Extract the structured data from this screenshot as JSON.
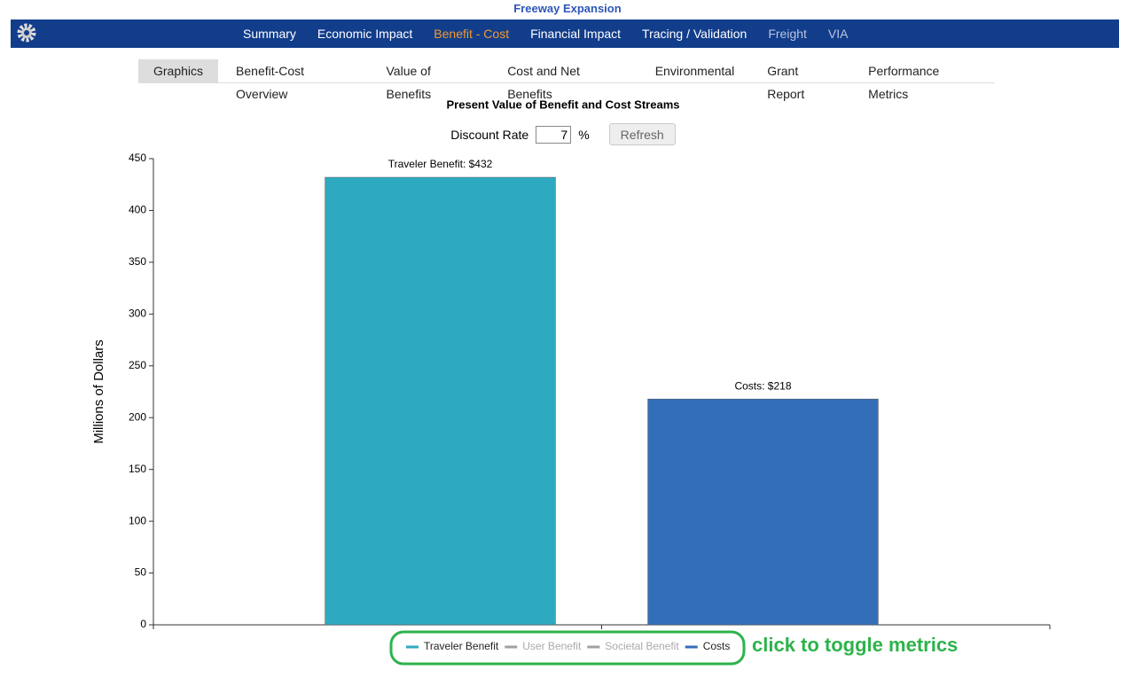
{
  "header": {
    "title": "Freeway Expansion"
  },
  "nav": {
    "items": [
      "Summary",
      "Economic Impact",
      "Benefit - Cost",
      "Financial Impact",
      "Tracing / Validation",
      "Freight",
      "VIA"
    ],
    "active": 2
  },
  "tabs": {
    "items": [
      "Graphics",
      "Benefit-Cost Overview",
      "Value of Benefits",
      "Cost and Net Benefits",
      "Environmental",
      "Grant Report",
      "Performance Metrics"
    ],
    "active": 0
  },
  "controls": {
    "label": "Discount Rate",
    "value": 7,
    "unit": "%",
    "button": "Refresh"
  },
  "chart_data": {
    "type": "bar",
    "title": "Present Value of Benefit and Cost Streams",
    "y_label": "Millions of Dollars",
    "categories": [
      null,
      null
    ],
    "ylim": [
      0,
      450
    ],
    "yticks": [
      0,
      50,
      100,
      150,
      200,
      250,
      300,
      350,
      400,
      450
    ],
    "series": [
      {
        "name": "Traveler Benefit",
        "color": "#2eaac0",
        "values": [
          432,
          null
        ],
        "value_labels": [
          "Traveler Benefit: $432",
          null
        ]
      },
      {
        "name": "User Benefit",
        "color": "#a0a0a0",
        "values": [
          null,
          null
        ],
        "hidden": true
      },
      {
        "name": "Societal Benefit",
        "color": "#a0a0a0",
        "values": [
          null,
          null
        ],
        "hidden": true
      },
      {
        "name": "Costs",
        "color": "#336eb8",
        "values": [
          null,
          218
        ],
        "value_labels": [
          null,
          "Costs: $218"
        ]
      }
    ],
    "annotation": "click to toggle metrics"
  }
}
